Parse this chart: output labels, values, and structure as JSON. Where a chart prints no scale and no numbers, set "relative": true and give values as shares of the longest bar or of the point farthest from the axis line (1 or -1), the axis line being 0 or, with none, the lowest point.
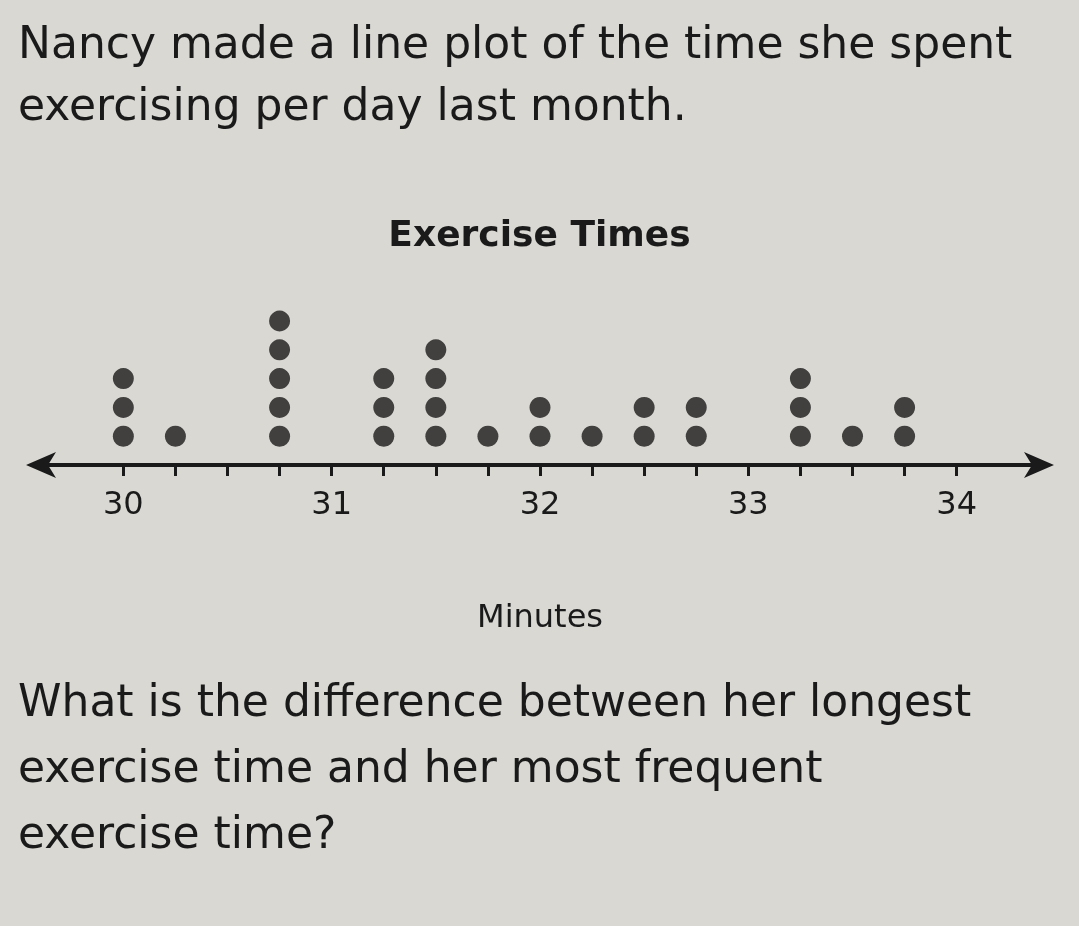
{
  "chart_data": {
    "type": "scatter",
    "title": "Exercise Times",
    "xlabel": "Minutes",
    "annotations": [
      "Nancy made a line plot of the time she spent exercising per day last month.",
      "What is the difference between her longest exercise time and her most frequent exercise time?"
    ],
    "x": [
      30,
      30,
      30,
      30.25,
      30.75,
      30.75,
      30.75,
      30.75,
      30.75,
      31.25,
      31.25,
      31.25,
      31.5,
      31.5,
      31.5,
      31.5,
      31.75,
      32,
      32,
      32.25,
      32.5,
      32.5,
      32.75,
      32.75,
      33.25,
      33.25,
      33.25,
      33.5,
      33.75,
      33.75
    ],
    "values": [
      0.2,
      0.4,
      0.6,
      0.2,
      0.2,
      0.4,
      0.6,
      0.8,
      1,
      0.2,
      0.4,
      0.6,
      0.2,
      0.4,
      0.6,
      0.8,
      0.2,
      0.2,
      0.4,
      0.2,
      0.2,
      0.4,
      0.2,
      0.4,
      0.2,
      0.4,
      0.6,
      0.2,
      0.2,
      0.4
    ],
    "relative": true,
    "color": "#1a1a1a",
    "marker": "circle",
    "grid": false,
    "tick_labels": "x",
    "xlim": [
      29.6,
      34.4
    ],
    "xticks": [
      30,
      {
        "value": 30.25,
        "label": null
      },
      {
        "value": 30.5,
        "label": null
      },
      {
        "value": 30.75,
        "label": null
      },
      31,
      {
        "value": 31.25,
        "label": null
      },
      {
        "value": 31.5,
        "label": null
      },
      {
        "value": 31.75,
        "label": null
      },
      32,
      {
        "value": 32.25,
        "label": null
      },
      {
        "value": 32.5,
        "label": null
      },
      {
        "value": 32.75,
        "label": null
      },
      33,
      {
        "value": 33.25,
        "label": null
      },
      {
        "value": 33.5,
        "label": null
      },
      {
        "value": 33.75,
        "label": null
      },
      34
    ]
  }
}
